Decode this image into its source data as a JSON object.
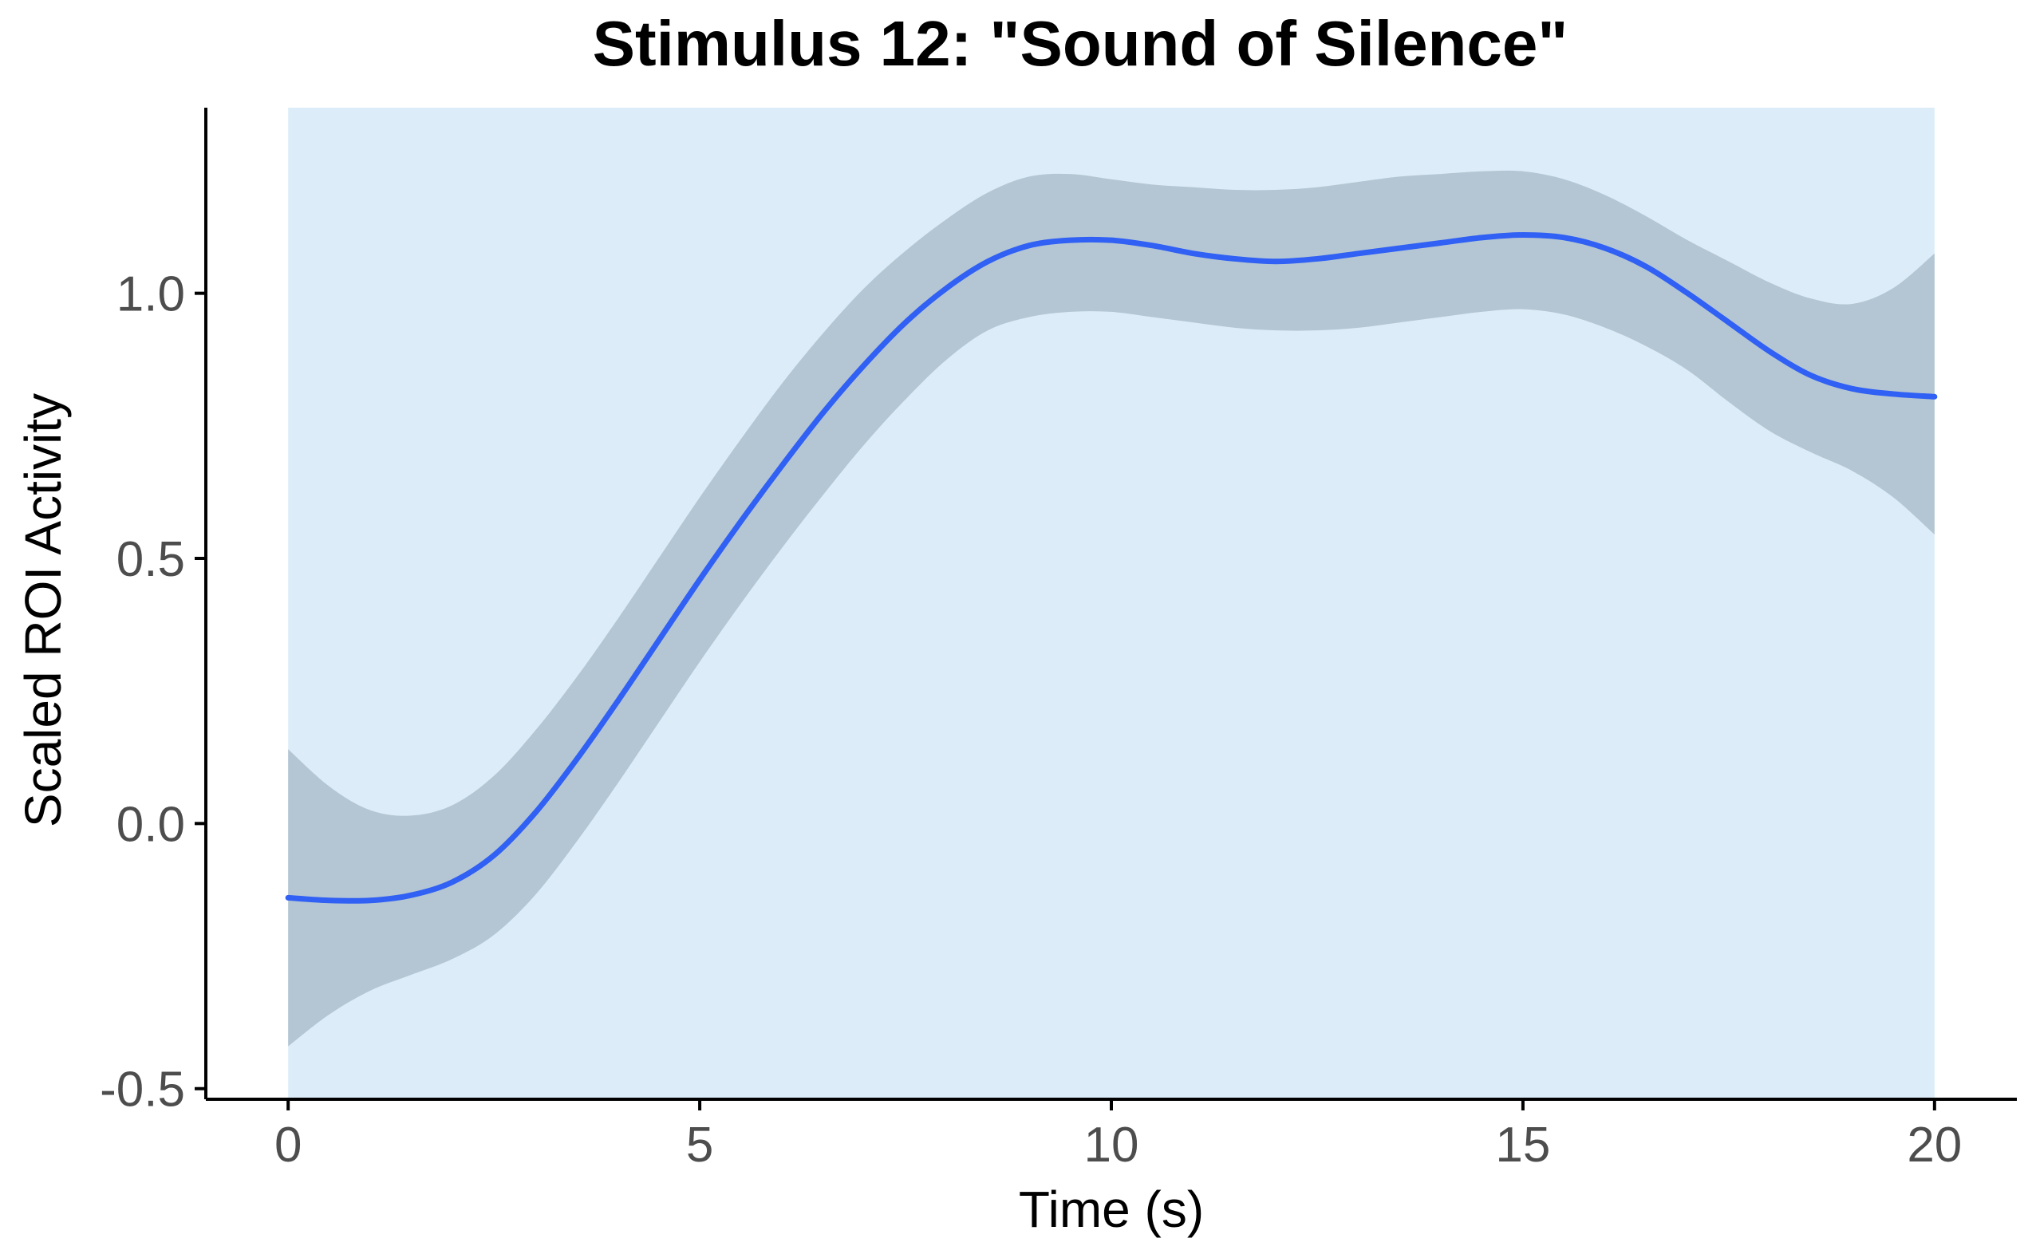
{
  "chart_data": {
    "type": "line",
    "title": "Stimulus 12: \"Sound of Silence\"",
    "xlabel": "Time (s)",
    "ylabel": "Scaled ROI Activity",
    "xlim": [
      -1,
      21
    ],
    "ylim": [
      -0.52,
      1.35
    ],
    "x_ticks": [
      0,
      5,
      10,
      15,
      20
    ],
    "x_tick_labels": [
      "0",
      "5",
      "10",
      "15",
      "20"
    ],
    "y_ticks": [
      -0.5,
      0,
      0.5,
      1.0
    ],
    "y_tick_labels": [
      "-0.5",
      "0.0",
      "0.5",
      "1.0"
    ],
    "grid": false,
    "legend": "none",
    "highlight_region": {
      "x": [
        0,
        20
      ],
      "color": "#dcecf8"
    },
    "colors": {
      "line": "#3060f4",
      "ribbon": "#b4c6d3",
      "axis": "#000000"
    },
    "series": [
      {
        "x": [
          0,
          0.5,
          1,
          1.5,
          2,
          2.5,
          3,
          3.5,
          4,
          4.5,
          5,
          5.5,
          6,
          6.5,
          7,
          7.5,
          8,
          8.5,
          9,
          9.5,
          10,
          10.5,
          11,
          11.5,
          12,
          12.5,
          13,
          13.5,
          14,
          14.5,
          15,
          15.5,
          16,
          16.5,
          17,
          17.5,
          18,
          18.5,
          19,
          19.5,
          20
        ],
        "y": [
          -0.14,
          -0.145,
          -0.145,
          -0.135,
          -0.11,
          -0.06,
          0.02,
          0.12,
          0.23,
          0.345,
          0.46,
          0.57,
          0.675,
          0.775,
          0.865,
          0.945,
          1.01,
          1.06,
          1.09,
          1.1,
          1.1,
          1.09,
          1.075,
          1.065,
          1.06,
          1.065,
          1.075,
          1.085,
          1.095,
          1.105,
          1.11,
          1.105,
          1.085,
          1.05,
          1.0,
          0.945,
          0.89,
          0.845,
          0.82,
          0.81,
          0.805
        ],
        "upper": [
          0.14,
          0.07,
          0.025,
          0.015,
          0.035,
          0.09,
          0.175,
          0.275,
          0.385,
          0.5,
          0.615,
          0.725,
          0.83,
          0.925,
          1.01,
          1.08,
          1.14,
          1.19,
          1.22,
          1.225,
          1.215,
          1.205,
          1.2,
          1.195,
          1.195,
          1.2,
          1.21,
          1.22,
          1.225,
          1.23,
          1.23,
          1.215,
          1.185,
          1.145,
          1.1,
          1.06,
          1.02,
          0.99,
          0.98,
          1.01,
          1.075
        ],
        "lower": [
          -0.42,
          -0.36,
          -0.315,
          -0.285,
          -0.255,
          -0.21,
          -0.135,
          -0.035,
          0.075,
          0.19,
          0.305,
          0.415,
          0.52,
          0.62,
          0.715,
          0.8,
          0.875,
          0.93,
          0.955,
          0.965,
          0.965,
          0.955,
          0.945,
          0.935,
          0.93,
          0.93,
          0.935,
          0.945,
          0.955,
          0.965,
          0.97,
          0.96,
          0.935,
          0.9,
          0.855,
          0.795,
          0.74,
          0.7,
          0.665,
          0.615,
          0.545
        ]
      }
    ]
  }
}
